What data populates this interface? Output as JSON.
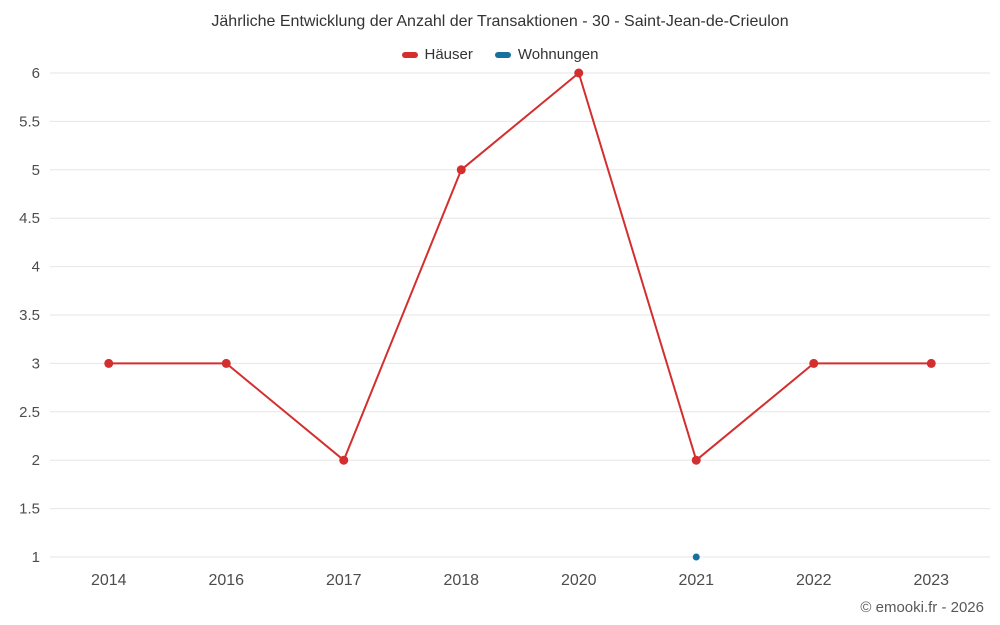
{
  "chart_data": {
    "type": "line",
    "title": "Jährliche Entwicklung der Anzahl der Transaktionen - 30 - Saint-Jean-de-Crieulon",
    "categories": [
      "2014",
      "2016",
      "2017",
      "2018",
      "2020",
      "2021",
      "2022",
      "2023"
    ],
    "series": [
      {
        "name": "Häuser",
        "color": "#d32f2f",
        "marker_radius": 4.5,
        "values": [
          3,
          3,
          2,
          5,
          6,
          2,
          3,
          3
        ]
      },
      {
        "name": "Wohnungen",
        "color": "#17709e",
        "marker_radius": 3.5,
        "values": [
          null,
          null,
          null,
          null,
          null,
          1,
          null,
          null
        ]
      }
    ],
    "ylim": [
      1,
      6
    ],
    "yticks": [
      1,
      1.5,
      2,
      2.5,
      3,
      3.5,
      4,
      4.5,
      5,
      5.5,
      6
    ],
    "grid": true,
    "gridline_color": "#e6e6e6",
    "axis_label_color": "#4d4d4d",
    "legend_position": "top"
  },
  "footer": {
    "copyright": "© emooki.fr - 2026"
  }
}
